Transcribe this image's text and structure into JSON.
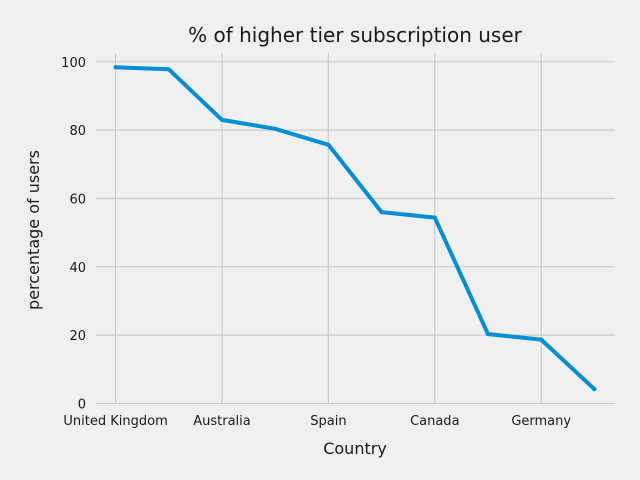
{
  "chart_data": {
    "type": "line",
    "title": "% of higher tier subscription user",
    "xlabel": "Country",
    "ylabel": "percentage of users",
    "x_tick_labels": [
      "United Kingdom",
      "Australia",
      "Spain",
      "Canada",
      "Germany"
    ],
    "ylim": [
      0,
      100
    ],
    "yticks": [
      0,
      20,
      40,
      60,
      80,
      100
    ],
    "grid": true,
    "style": "fivethirtyeight",
    "colors": {
      "background": "#f0f0f0",
      "line": "#008fd5",
      "grid": "#cbcbcb"
    },
    "series": [
      {
        "values": [
          98.4,
          97.8,
          83.0,
          80.4,
          75.7,
          56.0,
          54.4,
          20.3,
          18.7,
          4.2
        ]
      }
    ]
  }
}
